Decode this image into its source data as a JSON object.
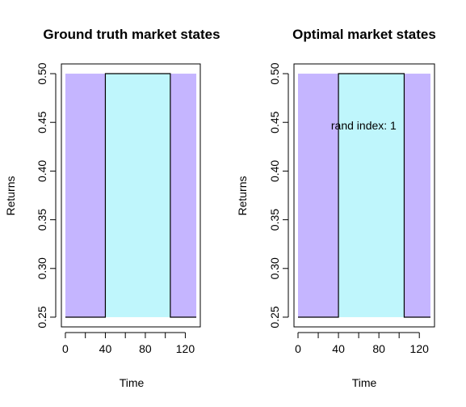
{
  "chart_data": [
    {
      "type": "line",
      "title": "Ground truth market states",
      "xlabel": "Time",
      "ylabel": "Returns",
      "xlim": [
        -4,
        135
      ],
      "ylim": [
        0.24,
        0.51
      ],
      "xticks": [
        0,
        20,
        40,
        60,
        80,
        100,
        120
      ],
      "xtick_labels": [
        "0",
        "",
        "40",
        "",
        "80",
        "",
        "120"
      ],
      "yticks": [
        0.25,
        0.3,
        0.35,
        0.4,
        0.45,
        0.5
      ],
      "ytick_labels": [
        "0.25",
        "0.30",
        "0.35",
        "0.40",
        "0.45",
        "0.50"
      ],
      "states": [
        {
          "x0": 0,
          "x1": 40,
          "y0": 0.25,
          "y1": 0.5,
          "color": "#c5b5ff"
        },
        {
          "x0": 40,
          "x1": 105,
          "y0": 0.25,
          "y1": 0.5,
          "color": "#bff6fc"
        },
        {
          "x0": 105,
          "x1": 131,
          "y0": 0.25,
          "y1": 0.5,
          "color": "#c5b5ff"
        }
      ],
      "line": {
        "x": [
          0,
          40,
          40,
          105,
          105,
          131
        ],
        "y": [
          0.25,
          0.25,
          0.5,
          0.5,
          0.25,
          0.25
        ],
        "color": "#000000"
      },
      "annotation": ""
    },
    {
      "type": "line",
      "title": "Optimal market states",
      "xlabel": "Time",
      "ylabel": "Returns",
      "xlim": [
        -4,
        135
      ],
      "ylim": [
        0.24,
        0.51
      ],
      "xticks": [
        0,
        20,
        40,
        60,
        80,
        100,
        120
      ],
      "xtick_labels": [
        "0",
        "",
        "40",
        "",
        "80",
        "",
        "120"
      ],
      "yticks": [
        0.25,
        0.3,
        0.35,
        0.4,
        0.45,
        0.5
      ],
      "ytick_labels": [
        "0.25",
        "0.30",
        "0.35",
        "0.40",
        "0.45",
        "0.50"
      ],
      "states": [
        {
          "x0": 0,
          "x1": 40,
          "y0": 0.25,
          "y1": 0.5,
          "color": "#c5b5ff"
        },
        {
          "x0": 40,
          "x1": 105,
          "y0": 0.25,
          "y1": 0.5,
          "color": "#bff6fc"
        },
        {
          "x0": 105,
          "x1": 131,
          "y0": 0.25,
          "y1": 0.5,
          "color": "#c5b5ff"
        }
      ],
      "line": {
        "x": [
          0,
          40,
          40,
          105,
          105,
          131
        ],
        "y": [
          0.25,
          0.25,
          0.5,
          0.5,
          0.25,
          0.25
        ],
        "color": "#000000"
      },
      "annotation": "rand index: 1",
      "annotation_pos": {
        "x": 65,
        "y": 0.447
      }
    }
  ]
}
